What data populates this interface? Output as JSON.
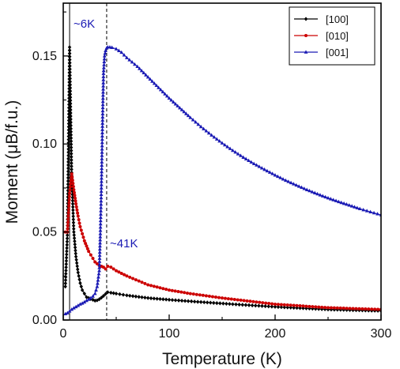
{
  "chart_data": {
    "type": "line",
    "title": "",
    "xlabel": "Temperature (K)",
    "ylabel": "Moment (μB/f.u.)",
    "xlim": [
      0,
      300
    ],
    "ylim": [
      0,
      0.18
    ],
    "xticks": [
      0,
      100,
      200,
      300
    ],
    "xtick_labels": [
      "0",
      "100",
      "200",
      "300"
    ],
    "yticks": [
      0,
      0.05,
      0.1,
      0.15
    ],
    "ytick_labels": [
      "0.00",
      "0.05",
      "0.10",
      "0.15"
    ],
    "grid": false,
    "legend_position": "top-right",
    "series": [
      {
        "name": "[100]",
        "color": "#000000",
        "marker": "diamond",
        "x": [
          2,
          4,
          6,
          8,
          10,
          12,
          14,
          16,
          18,
          20,
          22,
          24,
          26,
          28,
          30,
          32,
          34,
          36,
          38,
          40,
          42,
          45,
          50,
          60,
          80,
          100,
          130,
          160,
          200,
          250,
          300
        ],
        "y": [
          0.019,
          0.05,
          0.155,
          0.082,
          0.05,
          0.036,
          0.027,
          0.021,
          0.017,
          0.015,
          0.013,
          0.0125,
          0.012,
          0.0115,
          0.011,
          0.0112,
          0.0118,
          0.0127,
          0.0137,
          0.0148,
          0.0158,
          0.0155,
          0.015,
          0.014,
          0.0125,
          0.0115,
          0.0102,
          0.009,
          0.0075,
          0.006,
          0.0052
        ]
      },
      {
        "name": "[010]",
        "color": "#cc0000",
        "marker": "circle",
        "x": [
          2,
          4,
          6,
          8,
          10,
          12,
          14,
          16,
          18,
          20,
          22,
          24,
          26,
          28,
          30,
          32,
          34,
          36,
          38,
          40,
          42,
          45,
          50,
          60,
          80,
          100,
          120,
          150,
          200,
          250,
          300
        ],
        "y": [
          0.05,
          0.05,
          0.072,
          0.083,
          0.074,
          0.066,
          0.059,
          0.053,
          0.049,
          0.045,
          0.042,
          0.039,
          0.037,
          0.035,
          0.033,
          0.032,
          0.031,
          0.0305,
          0.03,
          0.029,
          0.0305,
          0.03,
          0.028,
          0.025,
          0.02,
          0.017,
          0.015,
          0.0125,
          0.009,
          0.007,
          0.006
        ]
      },
      {
        "name": "[001]",
        "color": "#1a1ab4",
        "marker": "triangle",
        "x": [
          2,
          4,
          6,
          8,
          10,
          12,
          14,
          16,
          18,
          20,
          22,
          24,
          26,
          28,
          30,
          32,
          34,
          35,
          36,
          37,
          38,
          39,
          40,
          41,
          42,
          44,
          46,
          50,
          55,
          60,
          70,
          80,
          90,
          100,
          110,
          120,
          130,
          140,
          150,
          160,
          170,
          180,
          190,
          200,
          210,
          220,
          230,
          240,
          250,
          260,
          270,
          280,
          290,
          300
        ],
        "y": [
          0.0035,
          0.004,
          0.005,
          0.006,
          0.0068,
          0.0075,
          0.0082,
          0.009,
          0.0095,
          0.0102,
          0.011,
          0.0117,
          0.0125,
          0.0135,
          0.015,
          0.019,
          0.028,
          0.049,
          0.075,
          0.11,
          0.14,
          0.15,
          0.153,
          0.1545,
          0.155,
          0.155,
          0.1548,
          0.154,
          0.152,
          0.149,
          0.144,
          0.138,
          0.132,
          0.126,
          0.1205,
          0.115,
          0.1098,
          0.105,
          0.1005,
          0.0963,
          0.0924,
          0.0888,
          0.0855,
          0.0823,
          0.0793,
          0.0766,
          0.074,
          0.0716,
          0.0693,
          0.0672,
          0.0652,
          0.0632,
          0.0614,
          0.0597
        ]
      }
    ],
    "annotations": [
      {
        "text": "~6K",
        "x": 6,
        "color": "#1a1ab4",
        "line_style": "solid"
      },
      {
        "text": "~41K",
        "x": 41,
        "color": "#1a1ab4",
        "line_style": "dashed"
      }
    ]
  }
}
